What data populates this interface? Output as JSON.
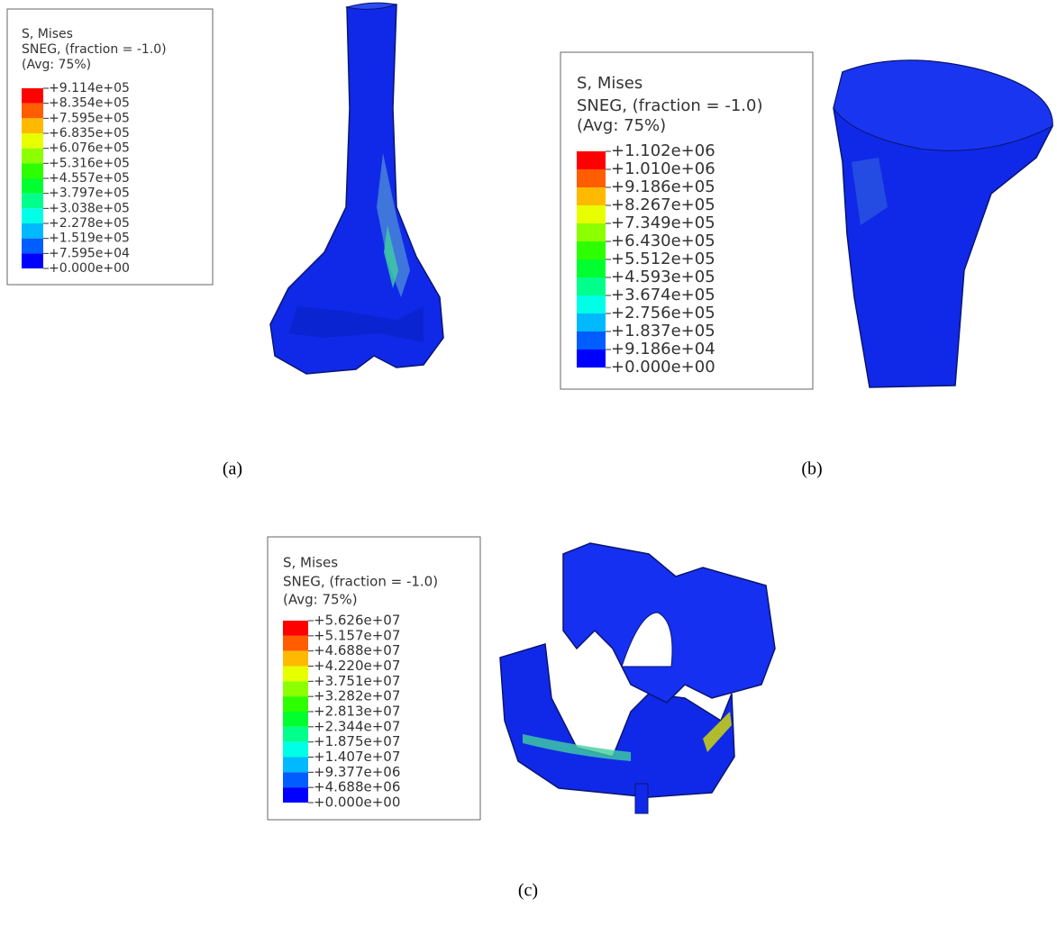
{
  "panels": [
    {
      "caption": "(a)",
      "legend": {
        "lines": [
          "S, Mises",
          "SNEG, (fraction = -1.0)",
          "(Avg: 75%)"
        ],
        "labels": [
          "+9.114e+05",
          "+8.354e+05",
          "+7.595e+05",
          "+6.835e+05",
          "+6.076e+05",
          "+5.316e+05",
          "+4.557e+05",
          "+3.797e+05",
          "+3.038e+05",
          "+2.278e+05",
          "+1.519e+05",
          "+7.595e+04",
          "+0.000e+00"
        ]
      }
    },
    {
      "caption": "(b)",
      "legend": {
        "lines": [
          "S, Mises",
          "SNEG, (fraction = -1.0)",
          "(Avg: 75%)"
        ],
        "labels": [
          "+1.102e+06",
          "+1.010e+06",
          "+9.186e+05",
          "+8.267e+05",
          "+7.349e+05",
          "+6.430e+05",
          "+5.512e+05",
          "+4.593e+05",
          "+3.674e+05",
          "+2.756e+05",
          "+1.837e+05",
          "+9.186e+04",
          "+0.000e+00"
        ]
      }
    },
    {
      "caption": "(c)",
      "legend": {
        "lines": [
          "S, Mises",
          "SNEG, (fraction = -1.0)",
          "(Avg: 75%)"
        ],
        "labels": [
          "+5.626e+07",
          "+5.157e+07",
          "+4.688e+07",
          "+4.220e+07",
          "+3.751e+07",
          "+3.282e+07",
          "+2.813e+07",
          "+2.344e+07",
          "+1.875e+07",
          "+1.407e+07",
          "+9.377e+06",
          "+4.688e+06",
          "+0.000e+00"
        ]
      }
    }
  ]
}
